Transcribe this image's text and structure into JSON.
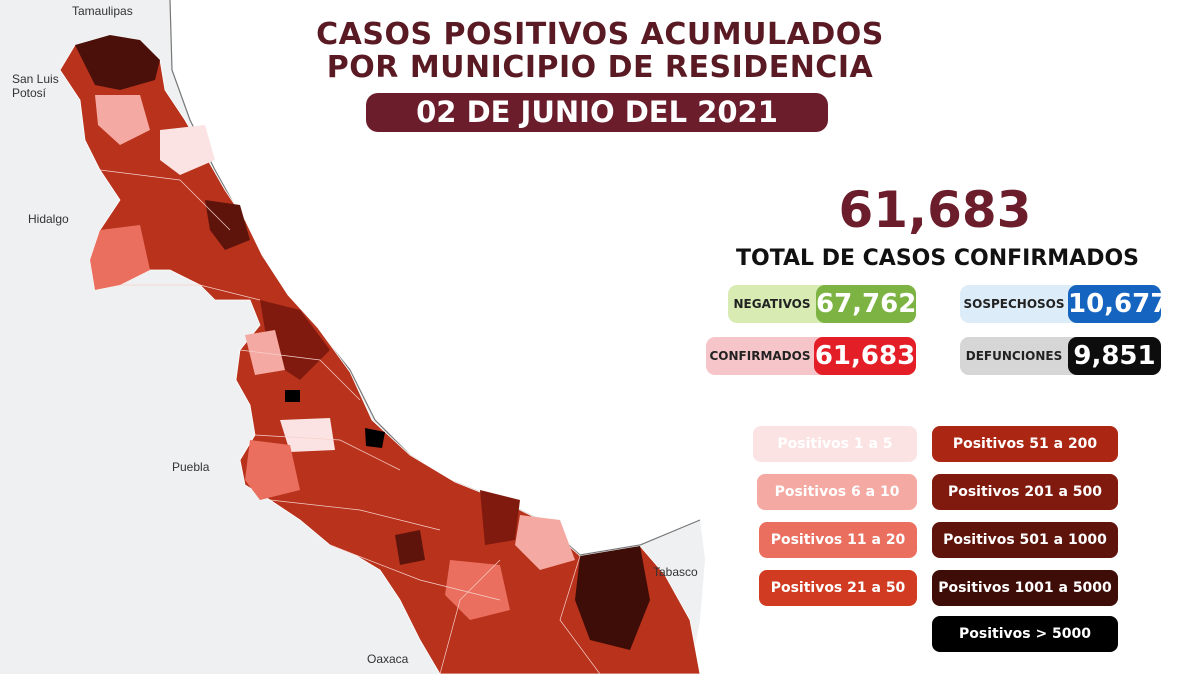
{
  "header": {
    "title_line1": "CASOS POSITIVOS ACUMULADOS",
    "title_line2": "POR MUNICIPIO DE RESIDENCIA",
    "date": "02 DE JUNIO DEL 2021"
  },
  "summary": {
    "total_value": "61,683",
    "total_label": "TOTAL DE CASOS CONFIRMADOS",
    "stats": [
      {
        "label": "NEGATIVOS",
        "value": "67,762",
        "label_bg": "#d7ebb2",
        "value_bg": "#7cb342"
      },
      {
        "label": "SOSPECHOSOS",
        "value": "10,677",
        "label_bg": "#dcecf8",
        "value_bg": "#1565c0"
      },
      {
        "label": "CONFIRMADOS",
        "value": "61,683",
        "label_bg": "#f6c5c9",
        "value_bg": "#e41e26"
      },
      {
        "label": "DEFUNCIONES",
        "value": "9,851",
        "label_bg": "#d6d6d6",
        "value_bg": "#0d0d0d"
      }
    ]
  },
  "legend": [
    {
      "label": "Positivos 1 a 5",
      "color": "#fbe3e3",
      "text_color": "#ffffff"
    },
    {
      "label": "Positivos 6 a 10",
      "color": "#f4a9a2",
      "text_color": "#ffffff"
    },
    {
      "label": "Positivos 11 a 20",
      "color": "#ea6f5f",
      "text_color": "#ffffff"
    },
    {
      "label": "Positivos 21 a 50",
      "color": "#d13b22",
      "text_color": "#ffffff"
    },
    {
      "label": "Positivos 51 a 200",
      "color": "#ab2613",
      "text_color": "#ffffff"
    },
    {
      "label": "Positivos 201 a 500",
      "color": "#801a0e",
      "text_color": "#ffffff"
    },
    {
      "label": "Positivos 501 a 1000",
      "color": "#5e140b",
      "text_color": "#ffffff"
    },
    {
      "label": "Positivos 1001 a 5000",
      "color": "#3f0d07",
      "text_color": "#ffffff"
    },
    {
      "label": "Positivos > 5000",
      "color": "#000000",
      "text_color": "#ffffff"
    }
  ],
  "neighbors": [
    "Tamaulipas",
    "San Luis Potosí",
    "Hidalgo",
    "Puebla",
    "Oaxaca",
    "Tabasco"
  ],
  "colors": {
    "title": "#5a1a24",
    "pill": "#6b1d2c",
    "total": "#6b1d2c",
    "land": "#eef0f1",
    "water": "#ffffff"
  }
}
